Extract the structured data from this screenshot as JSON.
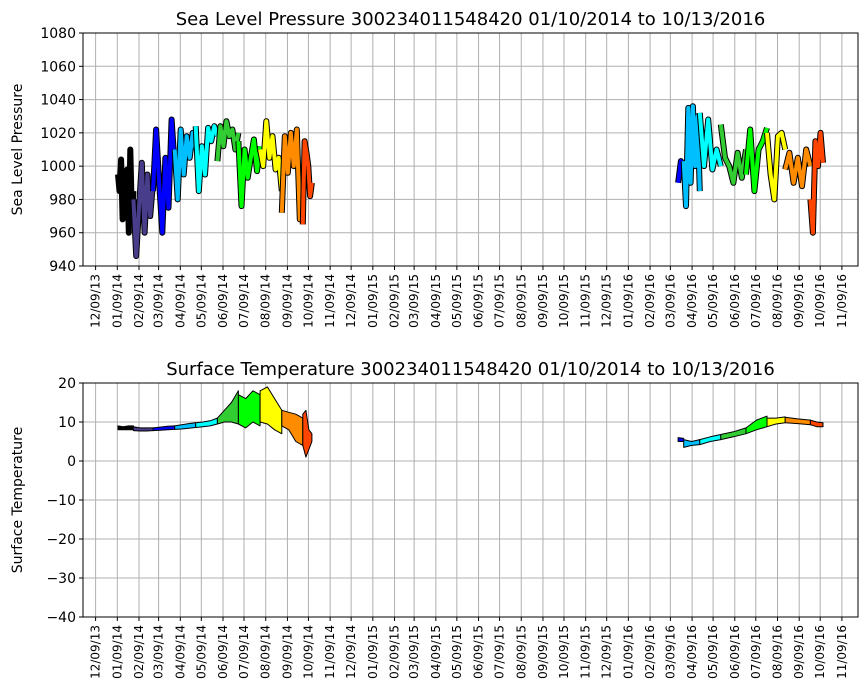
{
  "chart_data": [
    {
      "type": "line",
      "title": "Sea Level Pressure 300234011548420  01/10/2014 to 10/13/2016",
      "xlabel": "",
      "ylabel": "Sea Level Pressure",
      "ylim": [
        940,
        1080
      ],
      "yticks": [
        940,
        960,
        980,
        1000,
        1020,
        1040,
        1060,
        1080
      ],
      "xlim": [
        "2013-11-21",
        "2016-12-02"
      ],
      "grid": true,
      "style": "thick",
      "segments": [
        {
          "start": "2014-01-10",
          "end": "2014-02-01",
          "color": "#000000",
          "values": [
            995,
            985,
            1004,
            968,
            990,
            975,
            998,
            960,
            1010,
            970,
            985
          ]
        },
        {
          "start": "2014-02-01",
          "end": "2014-03-01",
          "color": "#483d8b",
          "values": [
            980,
            946,
            975,
            1002,
            960,
            995,
            970,
            990
          ]
        },
        {
          "start": "2014-03-01",
          "end": "2014-04-01",
          "color": "#0000ff",
          "values": [
            985,
            1022,
            990,
            960,
            1005,
            975,
            1028,
            1000
          ]
        },
        {
          "start": "2014-04-01",
          "end": "2014-05-01",
          "color": "#00bfff",
          "values": [
            1010,
            980,
            1022,
            995,
            1018,
            1005,
            1020,
            1010
          ]
        },
        {
          "start": "2014-05-01",
          "end": "2014-06-01",
          "color": "#00ffff",
          "values": [
            1024,
            985,
            1012,
            995,
            1023,
            1015,
            1024,
            1018
          ]
        },
        {
          "start": "2014-06-01",
          "end": "2014-07-01",
          "color": "#32cd32",
          "values": [
            1003,
            1024,
            1012,
            1027,
            1018,
            1022,
            1010,
            1020
          ]
        },
        {
          "start": "2014-07-01",
          "end": "2014-08-01",
          "color": "#00ff00",
          "values": [
            1015,
            976,
            1010,
            993,
            1005,
            1016,
            997,
            1012
          ]
        },
        {
          "start": "2014-08-01",
          "end": "2014-09-01",
          "color": "#ffff00",
          "values": [
            1010,
            1000,
            1027,
            1005,
            1018,
            998,
            1005,
            985
          ]
        },
        {
          "start": "2014-09-01",
          "end": "2014-10-01",
          "color": "#ff8c00",
          "values": [
            972,
            1018,
            996,
            1020,
            1000,
            1022,
            968,
            985
          ]
        },
        {
          "start": "2014-10-01",
          "end": "2014-10-14",
          "color": "#ff4500",
          "values": [
            965,
            1015,
            1008,
            1000,
            982,
            990
          ]
        },
        {
          "start": "2016-03-20",
          "end": "2016-03-28",
          "color": "#0000ff",
          "values": [
            990,
            1003,
            995
          ]
        },
        {
          "start": "2016-03-28",
          "end": "2016-04-20",
          "color": "#00bfff",
          "values": [
            1003,
            976,
            1035,
            990,
            1036,
            1000,
            1030,
            985
          ]
        },
        {
          "start": "2016-04-20",
          "end": "2016-05-20",
          "color": "#00ffff",
          "values": [
            1032,
            1000,
            1028,
            998,
            1010,
            1000
          ]
        },
        {
          "start": "2016-05-20",
          "end": "2016-06-25",
          "color": "#32cd32",
          "values": [
            1025,
            1005,
            1000,
            990,
            1008,
            993,
            1010
          ]
        },
        {
          "start": "2016-06-25",
          "end": "2016-07-25",
          "color": "#00ff00",
          "values": [
            995,
            1022,
            985,
            1010,
            1015,
            1023
          ]
        },
        {
          "start": "2016-07-25",
          "end": "2016-08-20",
          "color": "#ffff00",
          "values": [
            1020,
            995,
            980,
            1018,
            1020,
            1010
          ]
        },
        {
          "start": "2016-08-20",
          "end": "2016-09-25",
          "color": "#ff8c00",
          "values": [
            998,
            1008,
            990,
            1005,
            988,
            1010,
            1000
          ]
        },
        {
          "start": "2016-09-25",
          "end": "2016-10-13",
          "color": "#ff4500",
          "values": [
            980,
            960,
            1015,
            1000,
            1020,
            1002
          ]
        }
      ]
    },
    {
      "type": "area",
      "title": "Surface Temperature 300234011548420  01/10/2014 to 10/13/2016",
      "xlabel": "",
      "ylabel": "Surface Temperature",
      "ylim": [
        -40,
        20
      ],
      "yticks": [
        -40,
        -30,
        -20,
        -10,
        0,
        10,
        20
      ],
      "xlim": [
        "2013-11-21",
        "2016-12-02"
      ],
      "grid": true,
      "segments": [
        {
          "start": "2014-01-10",
          "end": "2014-02-01",
          "color": "#000000",
          "min": [
            8,
            8,
            8,
            8
          ],
          "max": [
            9,
            8.8,
            9,
            9
          ]
        },
        {
          "start": "2014-02-01",
          "end": "2014-03-01",
          "color": "#483d8b",
          "min": [
            7.8,
            7.7,
            7.7,
            7.8
          ],
          "max": [
            8.8,
            8.5,
            8.5,
            8.5
          ]
        },
        {
          "start": "2014-03-01",
          "end": "2014-04-01",
          "color": "#0000ff",
          "min": [
            7.8,
            7.9,
            8,
            8.1
          ],
          "max": [
            8.5,
            8.7,
            8.9,
            9
          ]
        },
        {
          "start": "2014-04-01",
          "end": "2014-05-01",
          "color": "#00bfff",
          "min": [
            8.1,
            8.2,
            8.4,
            8.6
          ],
          "max": [
            9,
            9.3,
            9.6,
            9.8
          ]
        },
        {
          "start": "2014-05-01",
          "end": "2014-06-01",
          "color": "#00ffff",
          "min": [
            8.6,
            8.8,
            9,
            9.5
          ],
          "max": [
            9.8,
            10,
            10.3,
            11
          ]
        },
        {
          "start": "2014-06-01",
          "end": "2014-07-01",
          "color": "#32cd32",
          "min": [
            9.5,
            10,
            10,
            9.5
          ],
          "max": [
            11,
            13,
            15,
            18
          ]
        },
        {
          "start": "2014-07-01",
          "end": "2014-08-01",
          "color": "#00ff00",
          "min": [
            9.5,
            8.5,
            10,
            9
          ],
          "max": [
            17,
            16,
            18,
            17
          ]
        },
        {
          "start": "2014-08-01",
          "end": "2014-09-01",
          "color": "#ffff00",
          "min": [
            10,
            9.5,
            8,
            7
          ],
          "max": [
            18,
            19,
            16,
            13
          ]
        },
        {
          "start": "2014-09-01",
          "end": "2014-10-01",
          "color": "#ff8c00",
          "min": [
            9,
            8,
            5,
            4
          ],
          "max": [
            13,
            12.5,
            12,
            11
          ]
        },
        {
          "start": "2014-10-01",
          "end": "2014-10-14",
          "color": "#ff4500",
          "min": [
            4,
            1,
            3,
            5
          ],
          "max": [
            12,
            13,
            8,
            7
          ]
        },
        {
          "start": "2016-03-20",
          "end": "2016-03-28",
          "color": "#0000ff",
          "min": [
            5,
            5
          ],
          "max": [
            6,
            5.8
          ]
        },
        {
          "start": "2016-03-28",
          "end": "2016-04-20",
          "color": "#00bfff",
          "min": [
            3.5,
            4,
            4.2
          ],
          "max": [
            5.5,
            5,
            5.5
          ]
        },
        {
          "start": "2016-04-20",
          "end": "2016-05-20",
          "color": "#00ffff",
          "min": [
            4.2,
            5,
            5.5
          ],
          "max": [
            5.5,
            6.2,
            6.8
          ]
        },
        {
          "start": "2016-05-20",
          "end": "2016-06-25",
          "color": "#32cd32",
          "min": [
            5.5,
            6.2,
            7
          ],
          "max": [
            6.8,
            7.5,
            8.5
          ]
        },
        {
          "start": "2016-06-25",
          "end": "2016-07-25",
          "color": "#00ff00",
          "min": [
            7,
            8,
            8.8
          ],
          "max": [
            8.5,
            10.5,
            11.5
          ]
        },
        {
          "start": "2016-07-25",
          "end": "2016-08-20",
          "color": "#ffff00",
          "min": [
            8.8,
            9.5,
            9.8
          ],
          "max": [
            11,
            11,
            11.3
          ]
        },
        {
          "start": "2016-08-20",
          "end": "2016-09-25",
          "color": "#ff8c00",
          "min": [
            9.8,
            9.6,
            9.3
          ],
          "max": [
            11.2,
            10.8,
            10.5
          ]
        },
        {
          "start": "2016-09-25",
          "end": "2016-10-13",
          "color": "#ff4500",
          "min": [
            9.3,
            8.8,
            8.8
          ],
          "max": [
            10.5,
            10,
            9.8
          ]
        }
      ]
    }
  ],
  "xtick_labels": [
    "12/09/13",
    "01/09/14",
    "02/09/14",
    "03/09/14",
    "04/09/14",
    "05/09/14",
    "06/09/14",
    "07/09/14",
    "08/09/14",
    "09/09/14",
    "10/09/14",
    "11/09/14",
    "12/09/14",
    "01/09/15",
    "02/09/15",
    "03/09/15",
    "04/09/15",
    "05/09/15",
    "06/09/15",
    "07/09/15",
    "08/09/15",
    "09/09/15",
    "10/09/15",
    "11/09/15",
    "12/09/15",
    "01/09/16",
    "02/09/16",
    "03/09/16",
    "04/09/16",
    "05/09/16",
    "06/09/16",
    "07/09/16",
    "08/09/16",
    "09/09/16",
    "10/09/16",
    "11/09/16"
  ]
}
